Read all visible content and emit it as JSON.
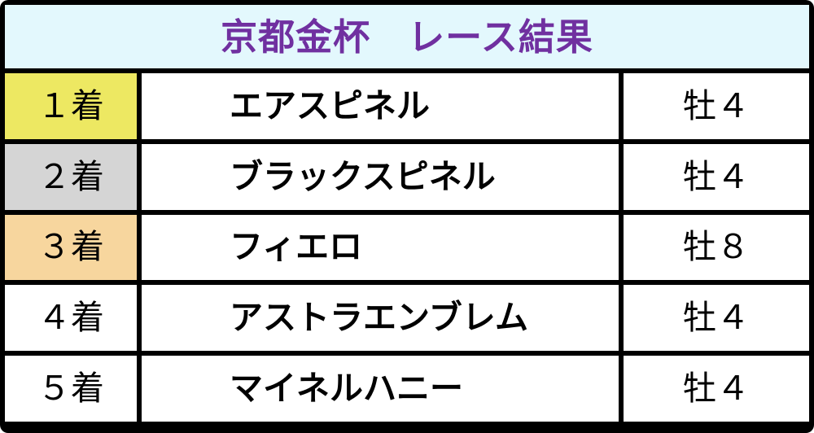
{
  "colors": {
    "card_border": "#000000",
    "header_bg": "#e3f8fd",
    "title_text": "#7030a0",
    "rank1_bg": "#ede862",
    "rank2_bg": "#d5d5d5",
    "rank3_bg": "#f7d69e",
    "default_cell_bg": "#ffffff",
    "body_text": "#000000"
  },
  "header": {
    "title": "京都金杯　レース結果"
  },
  "results": [
    {
      "rank": "１着",
      "horse": "エアスピネル",
      "sex_age": "牡４",
      "rank_bg": "#ede862"
    },
    {
      "rank": "２着",
      "horse": "ブラックスピネル",
      "sex_age": "牡４",
      "rank_bg": "#d5d5d5"
    },
    {
      "rank": "３着",
      "horse": "フィエロ",
      "sex_age": "牡８",
      "rank_bg": "#f7d69e"
    },
    {
      "rank": "４着",
      "horse": "アストラエンブレム",
      "sex_age": "牡４",
      "rank_bg": "#ffffff"
    },
    {
      "rank": "５着",
      "horse": "マイネルハニー",
      "sex_age": "牡４",
      "rank_bg": "#ffffff"
    }
  ],
  "chart_data": {
    "type": "table",
    "title": "京都金杯　レース結果",
    "rows": [
      [
        "１着",
        "エアスピネル",
        "牡４"
      ],
      [
        "２着",
        "ブラックスピネル",
        "牡４"
      ],
      [
        "３着",
        "フィエロ",
        "牡８"
      ],
      [
        "４着",
        "アストラエンブレム",
        "牡４"
      ],
      [
        "５着",
        "マイネルハニー",
        "牡４"
      ]
    ],
    "layout_hints": {
      "columns": 3,
      "header_band": true,
      "grid": "thick-black-borders"
    }
  }
}
